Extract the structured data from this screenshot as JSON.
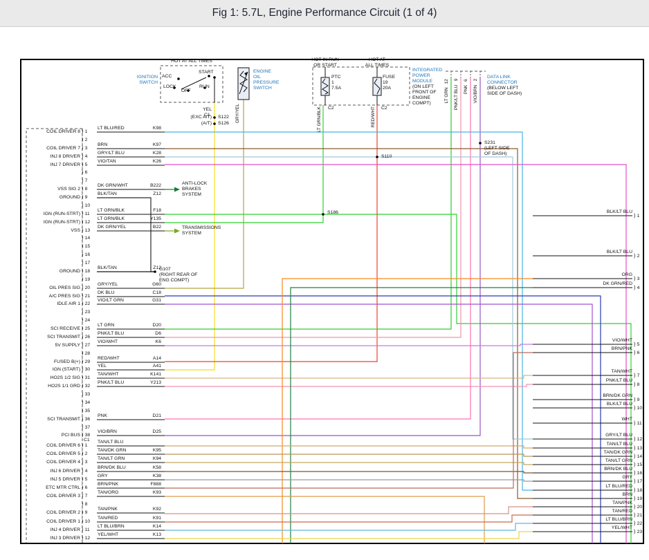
{
  "title": "Fig 1: 5.7L, Engine Performance Circuit (1 of 4)",
  "palette": {
    "component_label": "#1b75bb",
    "text": "#111111",
    "title_bar_bg": "#eaeaea"
  },
  "wire_colors": {
    "YEL": "#f2df1f",
    "GRY/YEL": "#b3a53e",
    "LT GRN/BLK": "#2fd12f",
    "RED/WHT": "#e8432e",
    "LT GRN": "#33cc33",
    "PNK/LT BLU": "#f491b2",
    "PNK": "#ff6fb5",
    "VIO/BRN": "#9a55c0",
    "LT BLU/RED": "#45b4e4",
    "BRN": "#8a5a2a",
    "GRY/LT BLU": "#9fc8d8",
    "VIO/TAN": "#e14fc6",
    "DK GRN/WHT": "#1d7a36",
    "DK GRN/YEL": "#7ca621",
    "DK BLU": "#2a3bb0",
    "VIO/LT GRN": "#a44fd0",
    "VIO/WHT": "#c678e8",
    "TAN/WHT": "#d8b488",
    "ORG": "#f6891f",
    "DK GRN/RED": "#207f3f",
    "TAN/LT BLU": "#d2a96e",
    "TAN/DK GRN": "#bb9354",
    "TAN/LT GRN": "#c6a75e",
    "BRN/DK BLU": "#80522e",
    "GRY": "#9a9a9a",
    "BRN/PNK": "#bb6a58",
    "TAN/ORG": "#dd9a44",
    "TAN/PNK": "#d89080",
    "TAN/RED": "#c96a4a",
    "LT BLU/BRN": "#62b8d8",
    "YEL/WHT": "#e6d84a",
    "BLK/TAN": "#2b2b2b",
    "BLK/LT BLU": "#222222",
    "WHT": "#cccccc",
    "BRN/DK GRN": "#6e5a22"
  },
  "top": {
    "ignition_switch": {
      "hot_label": "HOT AT ALL TIMES",
      "name_lines": [
        "IGNITION",
        "SWITCH"
      ],
      "positions": {
        "acc": "ACC",
        "start": "START",
        "lock": "LOCK",
        "off": "OFF",
        "run": "RUN"
      },
      "wire_label": "YEL",
      "connector_label": "C1",
      "splice1_note": "(EXC A/T)",
      "splice1": "S122",
      "splice2_note": "(A/T)",
      "splice2": "S126"
    },
    "oil_pressure_switch": {
      "name_lines": [
        "ENGINE",
        "OIL",
        "PRESSURE",
        "SWITCH"
      ],
      "wire_label": "GRY/YEL"
    },
    "power_module": {
      "hot1_lines": [
        "HOT IN RUN",
        "OR START"
      ],
      "hot2_lines": [
        "HOT AT",
        "ALL TIMES"
      ],
      "ptc_lines": [
        "PTC",
        "1",
        "7.5A"
      ],
      "fuse_lines": [
        "FUSE",
        "19",
        "20A"
      ],
      "name_lines": [
        "INTEGRATED",
        "POWER",
        "MODULE"
      ],
      "location_lines": [
        "(ON LEFT",
        "FRONT OF",
        "ENGINE",
        "COMPT)"
      ],
      "left_wire_label": "LT GRN/BLK",
      "left_connector": "C2",
      "right_wire_label": "RED/WHT",
      "right_connector": "C2"
    },
    "data_link_connector": {
      "name_lines": [
        "DATA LINK",
        "CONNECTOR"
      ],
      "location_lines": [
        "(BELOW LEFT",
        "SIDE OF DASH)"
      ],
      "wires": [
        {
          "label": "LT GRN",
          "pin": "12"
        },
        {
          "label": "PNK/LT BLU",
          "pin": "9"
        },
        {
          "label": "PNK",
          "pin": "6"
        },
        {
          "label": "VIO/BRN",
          "pin": "2"
        }
      ]
    }
  },
  "splices": {
    "s110": "S110",
    "s186": "S186",
    "s231_lines": [
      "S231",
      "(LEFT SIDE",
      "OF DASH)"
    ]
  },
  "ground": {
    "lines": [
      "G107",
      "(RIGHT REAR OF",
      "ENG COMPT)"
    ]
  },
  "branch_systems": {
    "abs_lines": [
      "ANTI-LOCK",
      "BRAKES",
      "SYSTEM"
    ],
    "trans_lines": [
      "TRANSMISSIONS",
      "SYSTEM"
    ]
  },
  "connector_c1": {
    "label": "C1",
    "pins": [
      {
        "num": "1",
        "signal": "COIL DRIVER 8",
        "wire": "LT BLU/RED",
        "circuit": "K98"
      },
      {
        "num": "2"
      },
      {
        "num": "3",
        "signal": "COIL DRIVER 7",
        "wire": "BRN",
        "circuit": "K97"
      },
      {
        "num": "4",
        "signal": "INJ 8 DRIVER",
        "wire": "GRY/LT BLU",
        "circuit": "K28"
      },
      {
        "num": "5",
        "signal": "INJ 7 DRIVER",
        "wire": "VIO/TAN",
        "circuit": "K26"
      },
      {
        "num": "6"
      },
      {
        "num": "7"
      },
      {
        "num": "8",
        "signal": "VSS SIG 2",
        "wire": "DK GRN/WHT",
        "circuit": "B222"
      },
      {
        "num": "9",
        "signal": "GROUND",
        "wire": "BLK/TAN",
        "circuit": "Z12"
      },
      {
        "num": "10"
      },
      {
        "num": "11",
        "signal": "IGN (RUN-STRT)",
        "wire": "LT GRN/BLK",
        "circuit": "F18"
      },
      {
        "num": "12",
        "signal": "IGN (RUN-STRT)",
        "wire": "LT GRN/BLK",
        "circuit": "Y135"
      },
      {
        "num": "13",
        "signal": "VSS",
        "wire": "DK GRN/YEL",
        "circuit": "B22"
      },
      {
        "num": "14"
      },
      {
        "num": "15"
      },
      {
        "num": "16"
      },
      {
        "num": "17"
      },
      {
        "num": "18",
        "signal": "GROUND",
        "wire": "BLK/TAN",
        "circuit": "Z12"
      },
      {
        "num": "19"
      },
      {
        "num": "20",
        "signal": "OIL PRES SIG",
        "wire": "GRY/YEL",
        "circuit": "G60"
      },
      {
        "num": "21",
        "signal": "A/C PRES SIG",
        "wire": "DK BLU",
        "circuit": "C18"
      },
      {
        "num": "22",
        "signal": "IDLE AIR 1",
        "wire": "VIO/LT GRN",
        "circuit": "G31"
      },
      {
        "num": "23"
      },
      {
        "num": "24"
      },
      {
        "num": "25",
        "signal": "SCI RECEIVE",
        "wire": "LT GRN",
        "circuit": "D20"
      },
      {
        "num": "26",
        "signal": "SCI TRANSMIT",
        "wire": "PNK/LT BLU",
        "circuit": "D6"
      },
      {
        "num": "27",
        "signal": "5V SUPPLY",
        "wire": "VIO/WHT",
        "circuit": "K6"
      },
      {
        "num": "28"
      },
      {
        "num": "29",
        "signal": "FUSED B(+)",
        "wire": "RED/WHT",
        "circuit": "A14"
      },
      {
        "num": "30",
        "signal": "IGN (START)",
        "wire": "YEL",
        "circuit": "A41"
      },
      {
        "num": "31",
        "signal": "HO2S 1/2 SIG",
        "wire": "TAN/WHT",
        "circuit": "K141"
      },
      {
        "num": "32",
        "signal": "HO2S 1/1 GRD",
        "wire": "PNK/LT BLU",
        "circuit": "Y213"
      },
      {
        "num": "33"
      },
      {
        "num": "34"
      },
      {
        "num": "35"
      },
      {
        "num": "36",
        "signal": "SCI TRANSMIT",
        "wire": "PNK",
        "circuit": "D21"
      },
      {
        "num": "37"
      },
      {
        "num": "38",
        "signal": "PCI BUS",
        "wire": "VIO/BRN",
        "circuit": "D25"
      }
    ]
  },
  "connector_c2": {
    "pins": [
      {
        "num": "1",
        "signal": "COIL DRIVER 6",
        "wire": "TAN/LT BLU",
        "circuit": ""
      },
      {
        "num": "2",
        "signal": "COIL DRIVER 5",
        "wire": "TAN/DK GRN",
        "circuit": "K95"
      },
      {
        "num": "3",
        "signal": "COIL DRIVER 4",
        "wire": "TAN/LT GRN",
        "circuit": "K94"
      },
      {
        "num": "4",
        "signal": "INJ 6 DRIVER",
        "wire": "BRN/DK BLU",
        "circuit": "K58"
      },
      {
        "num": "5",
        "signal": "INJ 5 DRIVER",
        "wire": "GRY",
        "circuit": "K38"
      },
      {
        "num": "6",
        "signal": "ETC MTR CTRL",
        "wire": "BRN/PNK",
        "circuit": "F888"
      },
      {
        "num": "7",
        "signal": "COIL DRIVER 3",
        "wire": "TAN/ORG",
        "circuit": "K93"
      },
      {
        "num": "8"
      },
      {
        "num": "9",
        "signal": "COIL DRIVER 2",
        "wire": "TAN/PNK",
        "circuit": "K92"
      },
      {
        "num": "10",
        "signal": "COIL DRIVER 1",
        "wire": "TAN/RED",
        "circuit": "K91"
      },
      {
        "num": "11",
        "signal": "INJ 4 DRIVER",
        "wire": "LT BLU/BRN",
        "circuit": "K14"
      },
      {
        "num": "12",
        "signal": "INJ 3 DRIVER",
        "wire": "YEL/WHT",
        "circuit": "K13"
      }
    ]
  },
  "right_terminals": [
    {
      "num": "1",
      "label": "BLK/LT BLU"
    },
    {
      "num": "2",
      "label": "BLK/LT BLU"
    },
    {
      "num": "3",
      "label": "ORG"
    },
    {
      "num": "4",
      "label": "DK GRN/RED"
    },
    {
      "num": "5",
      "label": "VIO/WHT"
    },
    {
      "num": "6",
      "label": "BRN/PNK"
    },
    {
      "num": "7",
      "label": "TAN/WHT"
    },
    {
      "num": "8",
      "label": "PNK/LT BLU"
    },
    {
      "num": "9",
      "label": "BRN/DK GRN"
    },
    {
      "num": "10",
      "label": "BLK/LT BLU"
    },
    {
      "num": "11",
      "label": "WHT"
    },
    {
      "num": "12",
      "label": "GRY/LT BLU"
    },
    {
      "num": "13",
      "label": "TAN/LT BLU"
    },
    {
      "num": "14",
      "label": "TAN/DK GRN"
    },
    {
      "num": "15",
      "label": "TAN/LT GRN"
    },
    {
      "num": "16",
      "label": "BRN/DK BLU"
    },
    {
      "num": "17",
      "label": "GRY"
    },
    {
      "num": "18",
      "label": "LT BLU/RED"
    },
    {
      "num": "19",
      "label": "BRN"
    },
    {
      "num": "20",
      "label": "TAN/PNK"
    },
    {
      "num": "21",
      "label": "TAN/RED"
    },
    {
      "num": "22",
      "label": "LT BLU/BRN"
    },
    {
      "num": "23",
      "label": "YEL/WHT"
    }
  ]
}
